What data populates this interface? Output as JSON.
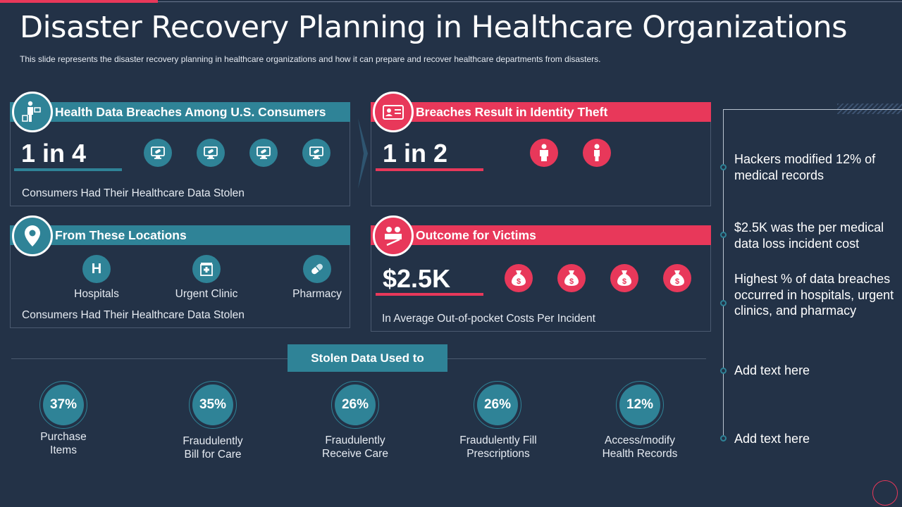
{
  "title": "Disaster Recovery Planning in Healthcare Organizations",
  "subtitle": "This slide represents the disaster recovery  planning in healthcare organizations and how it can prepare and recover healthcare departments from disasters.",
  "panel_breaches": {
    "heading": "Health Data Breaches Among U.S. Consumers",
    "stat": "1 in 4",
    "caption": "Consumers Had Their Healthcare  Data Stolen",
    "badge_icon": "person-with-card-icon",
    "item_icon": "monitor-pill-icon"
  },
  "panel_identity": {
    "heading": "Breaches Result in Identity Theft",
    "stat": "1 in 2",
    "badge_icon": "id-card-icon",
    "item_icons": [
      "person-icon",
      "person-icon"
    ]
  },
  "panel_locations": {
    "heading": "From These Locations",
    "caption": "Consumers Had Their Healthcare  Data Stolen",
    "badge_icon": "location-pin-icon",
    "locations": [
      {
        "label": "Hospitals",
        "icon": "hospital-icon",
        "letter": "H"
      },
      {
        "label": "Urgent Clinic",
        "icon": "clinic-icon"
      },
      {
        "label": "Pharmacy",
        "icon": "pill-icon"
      }
    ]
  },
  "panel_outcome": {
    "heading": "Outcome for Victims",
    "stat": "$2.5K",
    "caption": "In Average Out-of-pocket  Costs Per Incident",
    "badge_icon": "victims-icon",
    "item_icon": "money-bag-icon",
    "currency_symbol": "$"
  },
  "stolen": {
    "heading": "Stolen Data Used to",
    "items": [
      {
        "percent": "37%",
        "label_1": "Purchase",
        "label_2": "Items"
      },
      {
        "percent": "35%",
        "label_1": "Fraudulently",
        "label_2": "Bill for Care"
      },
      {
        "percent": "26%",
        "label_1": "Fraudulently",
        "label_2": "Receive Care"
      },
      {
        "percent": "26%",
        "label_1": "Fraudulently  Fill",
        "label_2": "Prescriptions"
      },
      {
        "percent": "12%",
        "label_1": "Access/modify",
        "label_2": "Health Records"
      }
    ]
  },
  "timeline": [
    "Hackers modified 12% of medical records",
    "$2.5K was the per medical data loss incident cost",
    "Highest % of data breaches occurred in hospitals, urgent clinics, and pharmacy",
    "Add text here",
    "Add text here"
  ],
  "colors": {
    "background": "#233247",
    "teal": "#2f8397",
    "red": "#e8385a"
  }
}
